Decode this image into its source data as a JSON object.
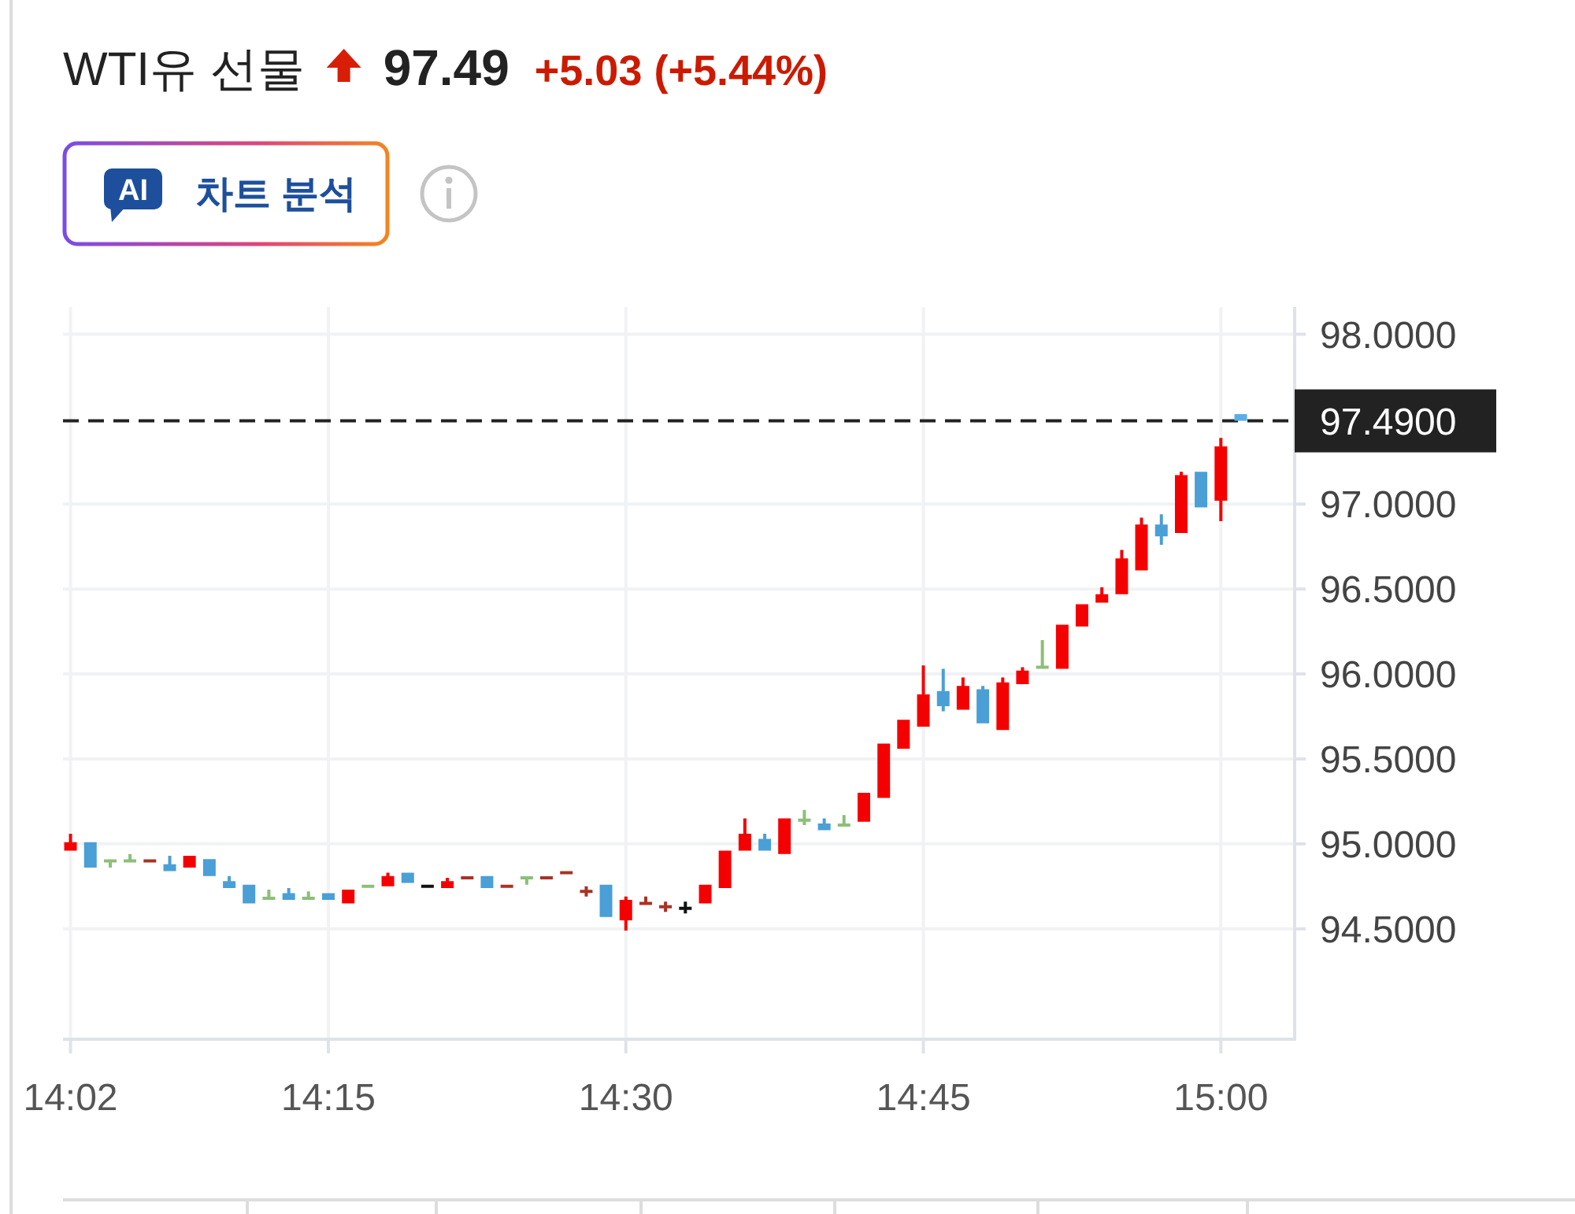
{
  "chart_data": {
    "type": "candlestick",
    "title": "WTI유 선물",
    "annotations": [
      "97.49",
      "+5.03 (+5.44%)",
      "AI",
      "차트 분석"
    ],
    "x": [
      14.0333,
      14.05,
      14.0667,
      14.0833,
      14.1,
      14.1167,
      14.1333,
      14.15,
      14.1667,
      14.1833,
      14.2,
      14.2167,
      14.2333,
      14.25,
      14.2667,
      14.2833,
      14.3,
      14.3167,
      14.3333,
      14.35,
      14.3667,
      14.3833,
      14.4,
      14.4167,
      14.4333,
      14.45,
      14.4667,
      14.4833,
      14.5,
      14.5167,
      14.5333,
      14.55,
      14.5667,
      14.5833,
      14.6,
      14.6167,
      14.6333,
      14.65,
      14.6667,
      14.6833,
      14.7,
      14.7167,
      14.7333,
      14.75,
      14.7667,
      14.7833,
      14.8,
      14.8167,
      14.8333,
      14.85,
      14.8667,
      14.8833,
      14.9,
      14.9167,
      14.9333,
      14.95,
      14.9667,
      14.9833,
      15,
      15.0167
    ],
    "ohlc": [
      [
        94.96,
        95.06,
        94.96,
        95.01
      ],
      [
        95.01,
        95.01,
        94.86,
        94.86
      ],
      [
        94.9,
        94.9,
        94.86,
        94.9
      ],
      [
        94.9,
        94.94,
        94.9,
        94.9
      ],
      [
        94.9,
        94.9,
        94.9,
        94.9
      ],
      [
        94.88,
        94.93,
        94.84,
        94.84
      ],
      [
        94.86,
        94.93,
        94.86,
        94.93
      ],
      [
        94.91,
        94.91,
        94.81,
        94.81
      ],
      [
        94.78,
        94.81,
        94.74,
        94.74
      ],
      [
        94.76,
        94.76,
        94.65,
        94.65
      ],
      [
        94.68,
        94.73,
        94.68,
        94.68
      ],
      [
        94.71,
        94.74,
        94.67,
        94.67
      ],
      [
        94.68,
        94.72,
        94.68,
        94.68
      ],
      [
        94.71,
        94.71,
        94.67,
        94.67
      ],
      [
        94.65,
        94.73,
        94.65,
        94.73
      ],
      [
        94.75,
        94.75,
        94.75,
        94.75
      ],
      [
        94.75,
        94.83,
        94.75,
        94.81
      ],
      [
        94.83,
        94.83,
        94.77,
        94.77
      ],
      [
        94.75,
        94.75,
        94.75,
        94.75
      ],
      [
        94.74,
        94.8,
        94.74,
        94.78
      ],
      [
        94.8,
        94.8,
        94.8,
        94.8
      ],
      [
        94.81,
        94.81,
        94.74,
        94.74
      ],
      [
        94.75,
        94.75,
        94.75,
        94.75
      ],
      [
        94.8,
        94.8,
        94.76,
        94.8
      ],
      [
        94.8,
        94.8,
        94.8,
        94.8
      ],
      [
        94.83,
        94.83,
        94.83,
        94.83
      ],
      [
        94.72,
        94.75,
        94.69,
        94.72
      ],
      [
        94.76,
        94.76,
        94.57,
        94.57
      ],
      [
        94.55,
        94.69,
        94.49,
        94.67
      ],
      [
        94.65,
        94.69,
        94.65,
        94.65
      ],
      [
        94.63,
        94.66,
        94.6,
        94.63
      ],
      [
        94.62,
        94.66,
        94.59,
        94.62
      ],
      [
        94.65,
        94.76,
        94.65,
        94.76
      ],
      [
        94.74,
        94.96,
        94.74,
        94.96
      ],
      [
        94.96,
        95.15,
        94.96,
        95.06
      ],
      [
        95.03,
        95.06,
        94.96,
        94.96
      ],
      [
        94.94,
        95.15,
        94.94,
        95.15
      ],
      [
        95.14,
        95.2,
        95.11,
        95.14
      ],
      [
        95.12,
        95.15,
        95.08,
        95.08
      ],
      [
        95.11,
        95.17,
        95.11,
        95.11
      ],
      [
        95.13,
        95.3,
        95.13,
        95.3
      ],
      [
        95.27,
        95.59,
        95.27,
        95.59
      ],
      [
        95.56,
        95.73,
        95.56,
        95.73
      ],
      [
        95.69,
        96.05,
        95.69,
        95.88
      ],
      [
        95.9,
        96.03,
        95.78,
        95.81
      ],
      [
        95.79,
        95.98,
        95.79,
        95.93
      ],
      [
        95.91,
        95.93,
        95.71,
        95.71
      ],
      [
        95.67,
        95.98,
        95.67,
        95.95
      ],
      [
        95.94,
        96.04,
        95.94,
        96.02
      ],
      [
        96.04,
        96.2,
        96.04,
        96.04
      ],
      [
        96.03,
        96.29,
        96.03,
        96.29
      ],
      [
        96.28,
        96.41,
        96.28,
        96.41
      ],
      [
        96.42,
        96.51,
        96.42,
        96.47
      ],
      [
        96.47,
        96.73,
        96.47,
        96.68
      ],
      [
        96.61,
        96.92,
        96.61,
        96.88
      ],
      [
        96.88,
        96.94,
        96.76,
        96.81
      ],
      [
        96.83,
        97.19,
        96.83,
        97.17
      ],
      [
        97.19,
        97.19,
        96.98,
        96.98
      ],
      [
        97.02,
        97.39,
        96.9,
        97.34
      ],
      [
        97.53,
        97.53,
        97.49,
        97.49
      ]
    ],
    "colors": [
      "#f50000",
      "#4a9fd6",
      "#8cbf78",
      "#8cbf78",
      "#a93226",
      "#4a9fd6",
      "#f50000",
      "#4a9fd6",
      "#4a9fd6",
      "#4a9fd6",
      "#8cbf78",
      "#4a9fd6",
      "#8cbf78",
      "#4a9fd6",
      "#f50000",
      "#8cbf78",
      "#f50000",
      "#4a9fd6",
      "#111111",
      "#f50000",
      "#a93226",
      "#4a9fd6",
      "#a93226",
      "#8cbf78",
      "#a93226",
      "#a93226",
      "#a93226",
      "#4a9fd6",
      "#f50000",
      "#a93226",
      "#a93226",
      "#111111",
      "#f50000",
      "#f50000",
      "#f50000",
      "#4a9fd6",
      "#f50000",
      "#8cbf78",
      "#4a9fd6",
      "#8cbf78",
      "#f50000",
      "#f50000",
      "#f50000",
      "#f50000",
      "#4a9fd6",
      "#f50000",
      "#4a9fd6",
      "#f50000",
      "#f50000",
      "#8cbf78",
      "#f50000",
      "#f50000",
      "#f50000",
      "#f50000",
      "#f50000",
      "#4a9fd6",
      "#f50000",
      "#4a9fd6",
      "#f50000",
      "#5aaee6"
    ],
    "xlim": [
      14.027,
      15.062
    ],
    "xticks": [
      {
        "value": 14.0333,
        "label": "14:02"
      },
      {
        "value": 14.25,
        "label": "14:15"
      },
      {
        "value": 14.5,
        "label": "14:30"
      },
      {
        "value": 14.75,
        "label": "14:45"
      },
      {
        "value": 15,
        "label": "15:00"
      }
    ],
    "ylim": [
      93.85,
      98.16
    ],
    "yticks": [
      {
        "value": 94.5,
        "label": "94.5000"
      },
      {
        "value": 95,
        "label": "95.0000"
      },
      {
        "value": 95.5,
        "label": "95.5000"
      },
      {
        "value": 96,
        "label": "96.0000"
      },
      {
        "value": 96.5,
        "label": "96.5000"
      },
      {
        "value": 97,
        "label": "97.0000"
      },
      {
        "value": 98,
        "label": "98.0000"
      }
    ],
    "ref_lines": [
      {
        "axis": "y",
        "value": 97.49,
        "label": "97.4900",
        "color": "#222222",
        "line_style": "dashed"
      }
    ],
    "grid": true
  }
}
